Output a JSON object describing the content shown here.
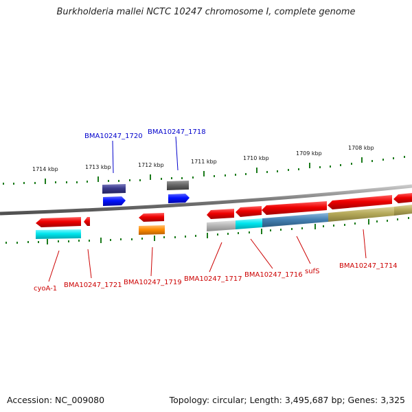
{
  "title": "Burkholderia mallei NCTC 10247 chromosome I, complete genome",
  "footer": {
    "accession": "Accession: NC_009080",
    "summary": "Topology: circular; Length: 3,495,687 bp; Genes: 3,325"
  },
  "scale_labels": [
    "1714 kbp",
    "1713 kbp",
    "1712 kbp",
    "1711 kbp",
    "1710 kbp",
    "1709 kbp",
    "1708 kbp"
  ],
  "gene_labels_top": [
    "BMA10247_1720",
    "BMA10247_1718"
  ],
  "gene_labels_bottom": [
    "cyoA-1",
    "BMA10247_1721",
    "BMA10247_1719",
    "BMA10247_1717",
    "BMA10247_1716",
    "sufS",
    "BMA10247_1714"
  ],
  "colors": {
    "backbone": "#8a8a8a",
    "tick": "#1a7a1a",
    "label_top": "#0000cc",
    "label_bottom": "#cc0000",
    "cds_red": "#ee0000",
    "cds_cyan": "#00e5ee",
    "cds_blue": "#0010ff",
    "cds_navy": "#3a3a8a",
    "cds_gray": "#666666",
    "cds_orange": "#ff8c00",
    "cds_lightgray": "#b8b8b8",
    "cds_steelblue": "#4682b4",
    "cds_khaki": "#b5a95a"
  }
}
